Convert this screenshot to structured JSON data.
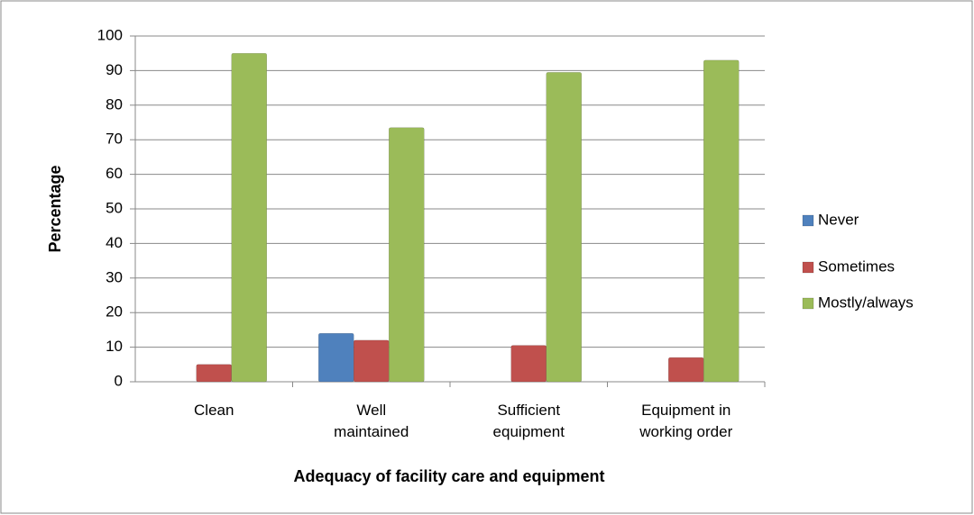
{
  "chart_data": {
    "type": "bar",
    "x_label": "Adequacy of facility care and equipment",
    "y_label": "Percentage",
    "categories": [
      "Clean",
      "Well maintained",
      "Sufficient equipment",
      "Equipment in working order"
    ],
    "series": [
      {
        "name": "Never",
        "color": "#4f81bd",
        "values": [
          0,
          14,
          0,
          0
        ]
      },
      {
        "name": "Sometimes",
        "color": "#c0504d",
        "values": [
          5,
          12,
          10.5,
          7
        ]
      },
      {
        "name": "Mostly/always",
        "color": "#9bbb59",
        "values": [
          95,
          73.5,
          89.5,
          93
        ]
      }
    ],
    "ylim": [
      0,
      100
    ],
    "yticks": [
      0,
      10,
      20,
      30,
      40,
      50,
      60,
      70,
      80,
      90,
      100
    ],
    "grid": true,
    "legend": "right"
  }
}
